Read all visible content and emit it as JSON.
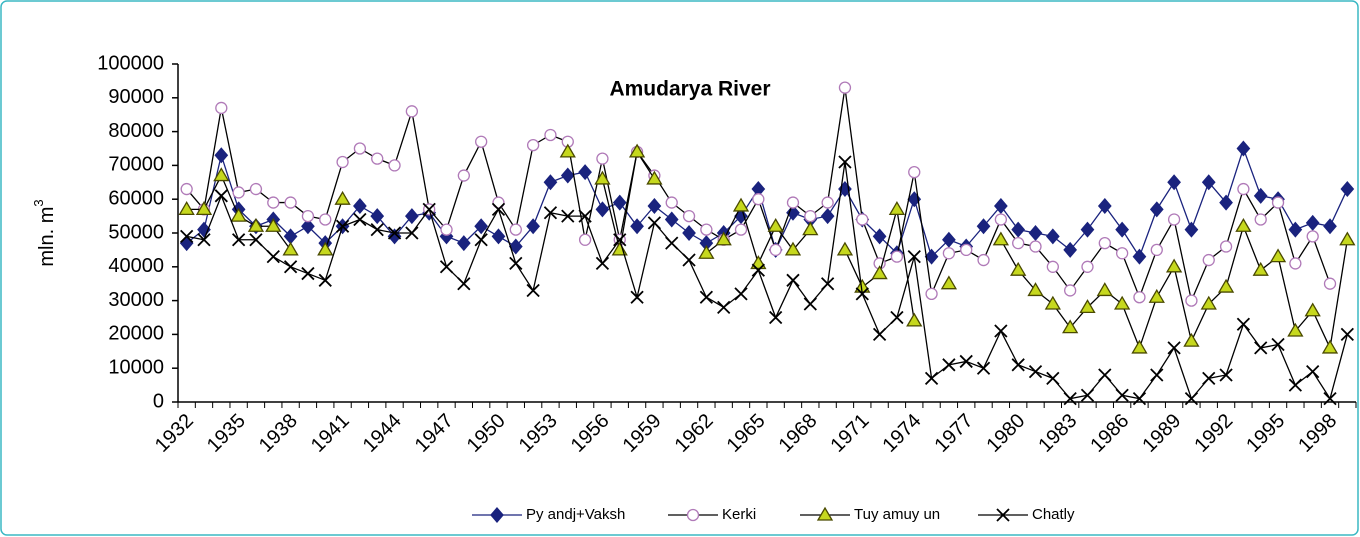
{
  "chart_data": {
    "type": "line",
    "title": "Amudarya River",
    "ylabel": {
      "text": "mln. m",
      "superscript": "3"
    },
    "categories": [
      "1932",
      null,
      null,
      "1935",
      null,
      null,
      "1938",
      null,
      null,
      "1941",
      null,
      null,
      "1944",
      null,
      null,
      "1947",
      null,
      null,
      "1950",
      null,
      null,
      "1953",
      null,
      null,
      "1956",
      null,
      null,
      "1959",
      null,
      null,
      "1962",
      null,
      null,
      "1965",
      null,
      null,
      "1968",
      null,
      null,
      "1971",
      null,
      null,
      "1974",
      null,
      null,
      "1977",
      null,
      null,
      "1980",
      null,
      null,
      "1983",
      null,
      null,
      "1986",
      null,
      null,
      "1989",
      null,
      null,
      "1992",
      null,
      null,
      "1995",
      null,
      null,
      "1998",
      null
    ],
    "ylim": [
      0,
      100000
    ],
    "yticks": [
      0,
      10000,
      20000,
      30000,
      40000,
      50000,
      60000,
      70000,
      80000,
      90000,
      100000
    ],
    "series": [
      {
        "name": "Py andj+Vaksh",
        "color": "#1a237e",
        "marker": "diamond",
        "marker_color": "#1a237e",
        "values": [
          47000,
          51000,
          73000,
          57000,
          52000,
          54000,
          49000,
          52000,
          47000,
          52000,
          58000,
          55000,
          49000,
          55000,
          56000,
          49000,
          47000,
          52000,
          49000,
          46000,
          52000,
          65000,
          67000,
          68000,
          57000,
          59000,
          52000,
          58000,
          54000,
          50000,
          47000,
          50000,
          55000,
          63000,
          45000,
          56000,
          54000,
          55000,
          63000,
          54000,
          49000,
          44000,
          60000,
          43000,
          48000,
          46000,
          52000,
          58000,
          51000,
          50000,
          49000,
          45000,
          51000,
          58000,
          51000,
          43000,
          57000,
          65000,
          51000,
          65000,
          59000,
          75000,
          61000,
          60000,
          51000,
          53000,
          52000,
          63000
        ]
      },
      {
        "name": "Kerki",
        "color": "#000000",
        "marker": "circle",
        "marker_color": "#ffffff",
        "marker_edge": "#b07ab8",
        "values": [
          63000,
          57000,
          87000,
          62000,
          63000,
          59000,
          59000,
          55000,
          54000,
          71000,
          75000,
          72000,
          70000,
          86000,
          57000,
          51000,
          67000,
          77000,
          59000,
          51000,
          76000,
          79000,
          77000,
          48000,
          72000,
          48000,
          74000,
          67000,
          59000,
          55000,
          51000,
          48000,
          51000,
          60000,
          45000,
          59000,
          55000,
          59000,
          93000,
          54000,
          41000,
          43000,
          68000,
          32000,
          44000,
          45000,
          42000,
          54000,
          47000,
          46000,
          40000,
          33000,
          40000,
          47000,
          44000,
          31000,
          45000,
          54000,
          30000,
          42000,
          46000,
          63000,
          54000,
          59000,
          41000,
          49000,
          35000,
          null
        ]
      },
      {
        "name": "Tuy amuy un",
        "color": "#000000",
        "marker": "triangle",
        "marker_color": "#c6d81e",
        "marker_edge": "#4a4a00",
        "values": [
          57000,
          57000,
          67000,
          55000,
          52000,
          52000,
          45000,
          null,
          45000,
          60000,
          null,
          null,
          null,
          null,
          null,
          null,
          null,
          null,
          null,
          null,
          null,
          null,
          74000,
          null,
          66000,
          45000,
          74000,
          66000,
          null,
          null,
          44000,
          48000,
          58000,
          41000,
          52000,
          45000,
          51000,
          null,
          45000,
          34000,
          38000,
          57000,
          24000,
          null,
          35000,
          null,
          null,
          48000,
          39000,
          33000,
          29000,
          22000,
          28000,
          33000,
          29000,
          16000,
          31000,
          40000,
          18000,
          29000,
          34000,
          52000,
          39000,
          43000,
          21000,
          27000,
          16000,
          48000
        ]
      },
      {
        "name": "Chatly",
        "color": "#000000",
        "marker": "cross",
        "marker_color": "#000000",
        "values": [
          49000,
          48000,
          61000,
          48000,
          48000,
          43000,
          40000,
          38000,
          36000,
          52000,
          54000,
          51000,
          50000,
          50000,
          57000,
          40000,
          35000,
          48000,
          57000,
          41000,
          33000,
          56000,
          55000,
          55000,
          41000,
          48000,
          31000,
          53000,
          47000,
          42000,
          31000,
          28000,
          32000,
          39000,
          25000,
          36000,
          29000,
          35000,
          71000,
          32000,
          20000,
          25000,
          43000,
          7000,
          11000,
          12000,
          10000,
          21000,
          11000,
          9000,
          7000,
          1000,
          2000,
          8000,
          2000,
          1000,
          8000,
          16000,
          1000,
          7000,
          8000,
          23000,
          16000,
          17000,
          5000,
          9000,
          1000,
          20000
        ]
      }
    ],
    "legend": "bottom"
  }
}
